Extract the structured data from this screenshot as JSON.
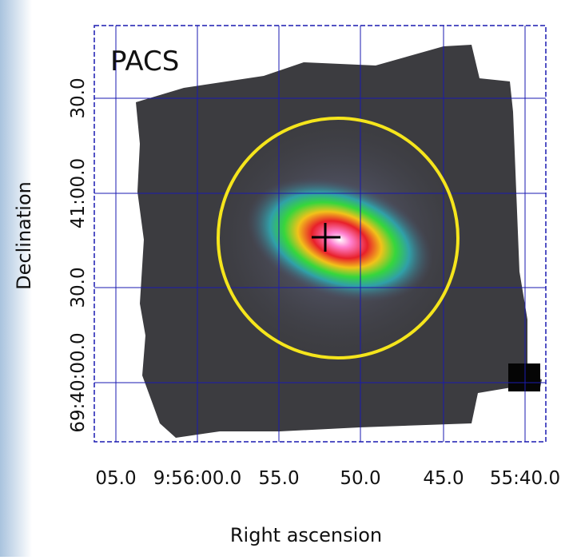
{
  "panel_label": "PACS",
  "x_axis": {
    "label": "Right ascension",
    "ticks": [
      "05.0",
      "9:56:00.0",
      "55.0",
      "50.0",
      "45.0",
      "55:40.0"
    ]
  },
  "y_axis": {
    "label": "Declination",
    "ticks": [
      "30.0",
      "41:00.0",
      "30.0",
      "69:40:00.0"
    ]
  }
}
